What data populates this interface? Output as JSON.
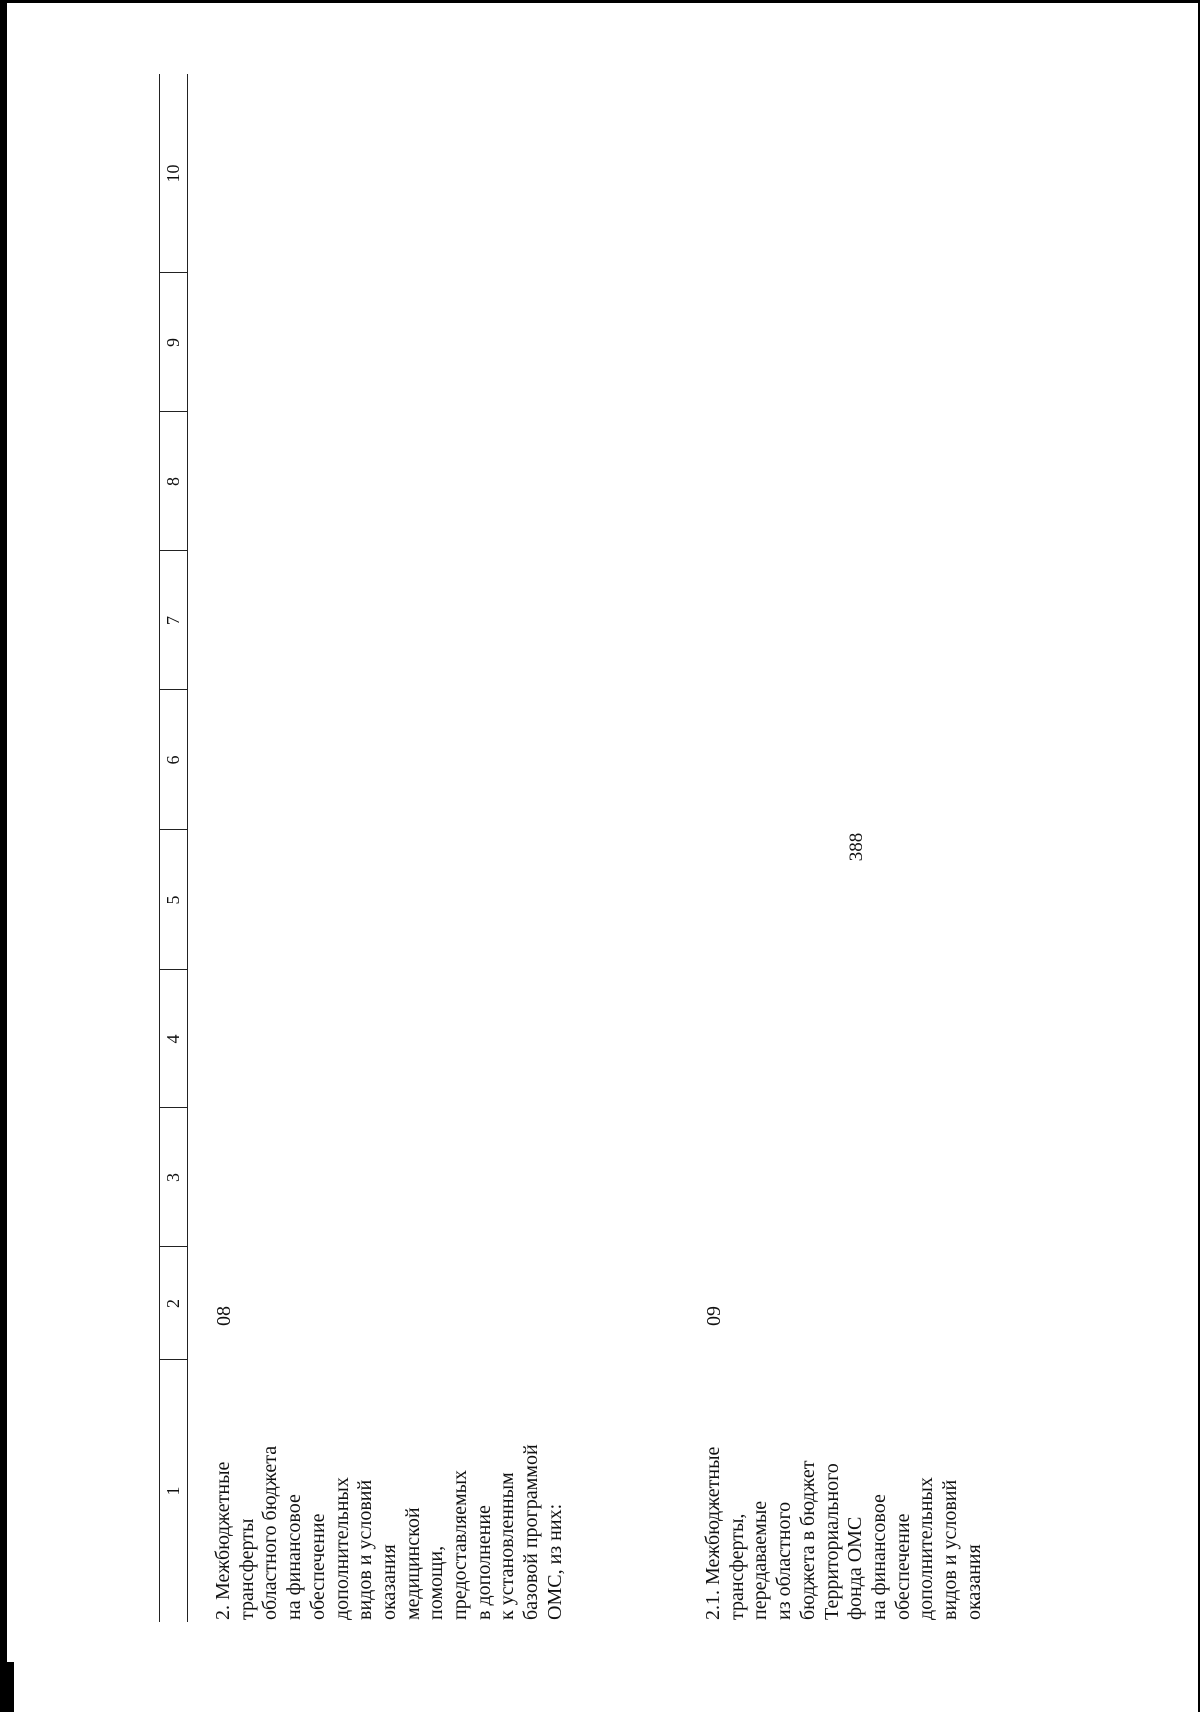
{
  "page": {
    "number": "388"
  },
  "table": {
    "columns": [
      "1",
      "2",
      "3",
      "4",
      "5",
      "6",
      "7",
      "8",
      "9",
      "10"
    ],
    "rows": [
      {
        "name": "2. Межбюджетные\nтрансферты\nобластного бюджета\nна финансовое\nобеспечение\nдополнительных\nвидов и условий\nоказания\nмедицинской\nпомощи,\nпредоставляемых\nв дополнение\nк установленным\nбазовой программой\nОМС, из них:",
        "code": "08"
      },
      {
        "name": "2.1. Межбюджетные\nтрансферты,\nпередаваемые\nиз областного\nбюджета в бюджет\nТерриториального\nфонда ОМС\nна финансовое\nобеспечение\nдополнительных\nвидов и условий\nоказания",
        "code": "09"
      }
    ]
  }
}
